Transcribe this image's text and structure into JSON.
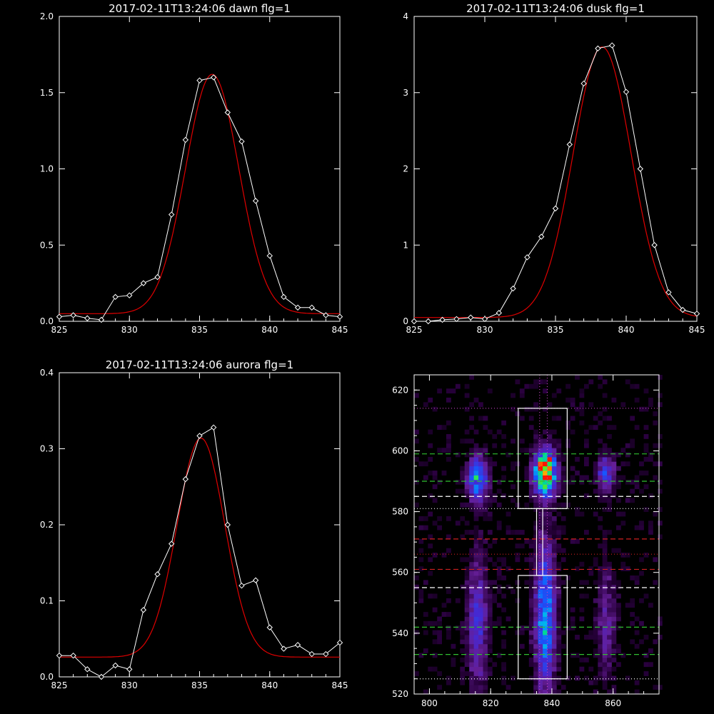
{
  "colors": {
    "background": "#000000",
    "data_line": "#ffffff",
    "fit_line": "#e00000",
    "axis": "#ffffff"
  },
  "chart_data": [
    {
      "type": "line",
      "title": "2017-02-11T13:24:06 dawn flg=1",
      "xlim": [
        825,
        845
      ],
      "ylim": [
        0,
        2.0
      ],
      "xticks": [
        825,
        830,
        835,
        840,
        845
      ],
      "yticks": [
        0.0,
        0.5,
        1.0,
        1.5,
        2.0
      ],
      "ytick_labels": [
        "0.0",
        "0.5",
        "1.0",
        "1.5",
        "2.0"
      ],
      "series": [
        {
          "role": "data",
          "marker": "diamond",
          "x": [
            825,
            826,
            827,
            828,
            829,
            830,
            831,
            832,
            833,
            834,
            835,
            836,
            837,
            838,
            839,
            840,
            841,
            842,
            843,
            844,
            845
          ],
          "y": [
            0.03,
            0.04,
            0.02,
            0.01,
            0.16,
            0.17,
            0.25,
            0.29,
            0.7,
            1.19,
            1.58,
            1.6,
            1.37,
            1.18,
            0.79,
            0.43,
            0.16,
            0.09,
            0.09,
            0.04,
            0.03
          ]
        },
        {
          "role": "fit",
          "gauss": {
            "amp": 1.57,
            "center": 835.9,
            "sigma": 1.9,
            "base": 0.05
          }
        }
      ]
    },
    {
      "type": "line",
      "title": "2017-02-11T13:24:06 dusk flg=1",
      "xlim": [
        825,
        845
      ],
      "ylim": [
        0,
        4
      ],
      "xticks": [
        825,
        830,
        835,
        840,
        845
      ],
      "yticks": [
        0,
        1,
        2,
        3,
        4
      ],
      "ytick_labels": [
        "0",
        "1",
        "2",
        "3",
        "4"
      ],
      "series": [
        {
          "role": "data",
          "marker": "diamond",
          "x": [
            825,
            826,
            827,
            828,
            829,
            830,
            831,
            832,
            833,
            834,
            835,
            836,
            837,
            838,
            839,
            840,
            841,
            842,
            843,
            844,
            845
          ],
          "y": [
            0.0,
            0.0,
            0.02,
            0.03,
            0.05,
            0.03,
            0.11,
            0.43,
            0.84,
            1.11,
            1.48,
            2.32,
            3.12,
            3.58,
            3.62,
            3.01,
            2.0,
            1.0,
            0.38,
            0.15,
            0.1
          ]
        },
        {
          "role": "fit",
          "gauss": {
            "amp": 3.55,
            "center": 838.3,
            "sigma": 2.05,
            "base": 0.05
          }
        }
      ]
    },
    {
      "type": "line",
      "title": "2017-02-11T13:24:06 aurora flg=1",
      "xlim": [
        825,
        845
      ],
      "ylim": [
        0,
        0.4
      ],
      "xticks": [
        825,
        830,
        835,
        840,
        845
      ],
      "yticks": [
        0.0,
        0.1,
        0.2,
        0.3,
        0.4
      ],
      "ytick_labels": [
        "0.0",
        "0.1",
        "0.2",
        "0.3",
        "0.4"
      ],
      "series": [
        {
          "role": "data",
          "marker": "diamond",
          "x": [
            825,
            826,
            827,
            828,
            829,
            830,
            831,
            832,
            833,
            834,
            835,
            836,
            837,
            838,
            839,
            840,
            841,
            842,
            843,
            844,
            845
          ],
          "y": [
            0.028,
            0.028,
            0.01,
            0.0,
            0.015,
            0.01,
            0.088,
            0.135,
            0.175,
            0.26,
            0.317,
            0.328,
            0.2,
            0.12,
            0.127,
            0.065,
            0.037,
            0.042,
            0.03,
            0.03,
            0.045
          ]
        },
        {
          "role": "fit",
          "gauss": {
            "amp": 0.288,
            "center": 835.1,
            "sigma": 1.7,
            "base": 0.026
          }
        }
      ]
    },
    {
      "type": "heatmap",
      "xlim": [
        795,
        875
      ],
      "ylim": [
        520,
        625
      ],
      "xticks": [
        800,
        820,
        840,
        860
      ],
      "yticks": [
        520,
        540,
        560,
        580,
        600,
        620
      ],
      "blobs": [
        {
          "x": 815,
          "y": 590,
          "sx": 2.2,
          "sy": 5,
          "amp": 0.55
        },
        {
          "x": 837,
          "y": 592,
          "sx": 2.4,
          "sy": 5,
          "amp": 1.0
        },
        {
          "x": 838,
          "y": 595,
          "sx": 1.2,
          "sy": 2.2,
          "amp": 0.35
        },
        {
          "x": 857,
          "y": 592,
          "sx": 2.0,
          "sy": 4,
          "amp": 0.35
        },
        {
          "x": 815,
          "y": 543,
          "sx": 2.2,
          "sy": 14,
          "amp": 0.32
        },
        {
          "x": 837,
          "y": 545,
          "sx": 2.2,
          "sy": 16,
          "amp": 0.55
        },
        {
          "x": 857,
          "y": 543,
          "sx": 2.0,
          "sy": 12,
          "amp": 0.2
        }
      ],
      "boxes": [
        {
          "x0": 829,
          "x1": 845,
          "y0": 581,
          "y1": 614
        },
        {
          "x0": 829,
          "x1": 845,
          "y0": 525,
          "y1": 559
        },
        {
          "x0": 835,
          "x1": 837,
          "y0": 559,
          "y1": 581
        }
      ],
      "hlines": [
        {
          "y": 614,
          "color": "#c040c0",
          "style": "dotted"
        },
        {
          "y": 599,
          "color": "#30c030",
          "style": "dashed"
        },
        {
          "y": 590,
          "color": "#30c030",
          "style": "dashed"
        },
        {
          "y": 585,
          "color": "#ffffff",
          "style": "dashed"
        },
        {
          "y": 581,
          "color": "#ffffff",
          "style": "dotted"
        },
        {
          "y": 571,
          "color": "#d02020",
          "style": "dashed"
        },
        {
          "y": 566,
          "color": "#d02020",
          "style": "dotted"
        },
        {
          "y": 561,
          "color": "#d02020",
          "style": "dashed"
        },
        {
          "y": 555,
          "color": "#ffffff",
          "style": "dashed"
        },
        {
          "y": 542,
          "color": "#30c030",
          "style": "dashed"
        },
        {
          "y": 533,
          "color": "#30c030",
          "style": "dashed"
        },
        {
          "y": 525,
          "color": "#ffffff",
          "style": "dotted"
        }
      ],
      "vlines": [
        {
          "x": 836,
          "color": "#c040c0",
          "style": "dotted"
        },
        {
          "x": 838.5,
          "color": "#c040c0",
          "style": "dotted"
        }
      ]
    }
  ]
}
